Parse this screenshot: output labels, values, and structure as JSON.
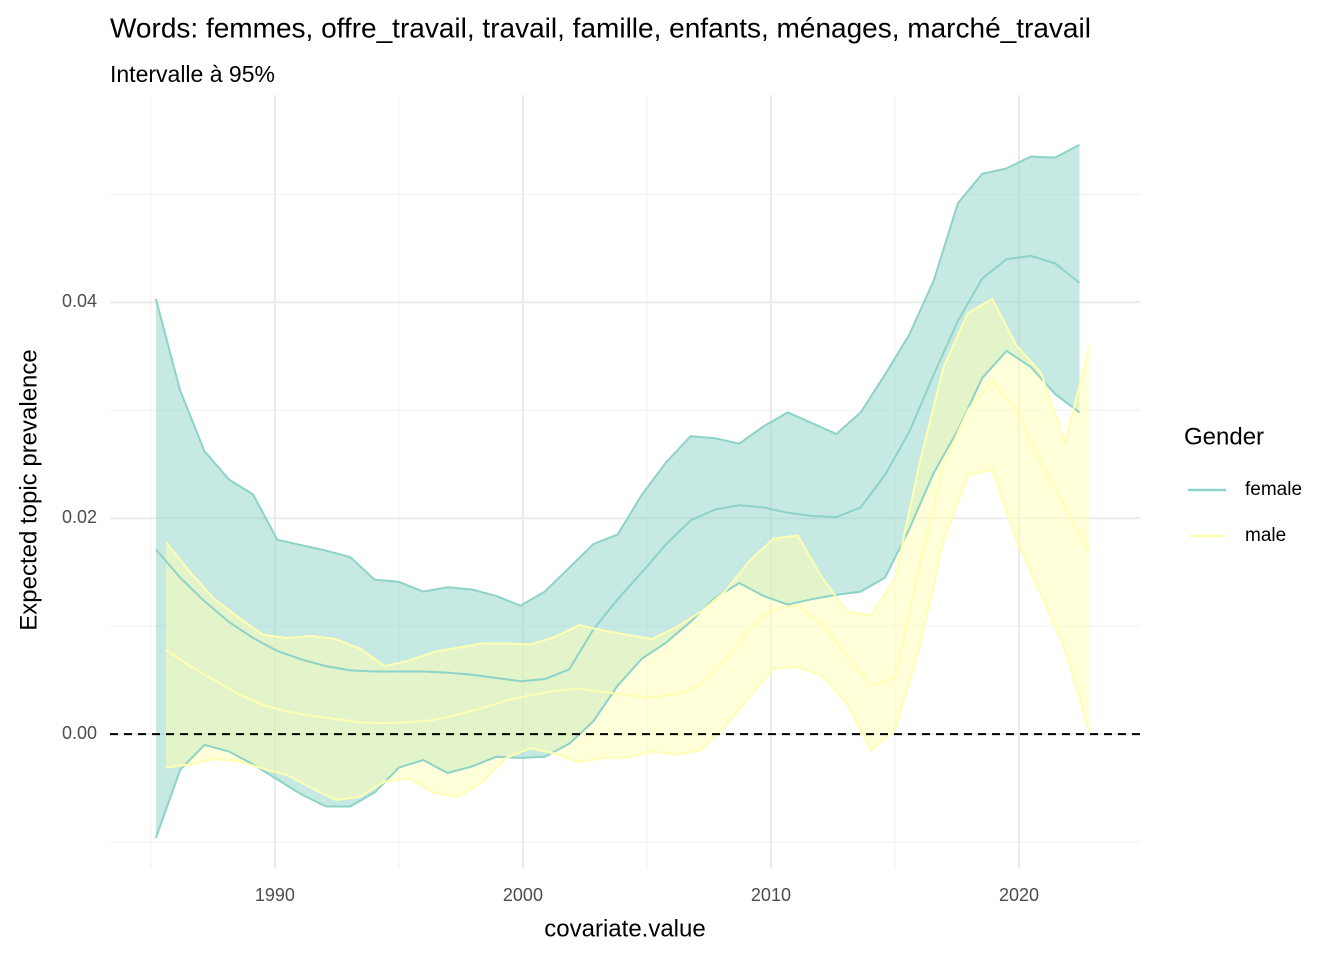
{
  "chart_data": {
    "type": "ribbon-line",
    "title": "Words: femmes, offre_travail, travail, famille, enfants, ménages, marché_travail",
    "subtitle": "Intervalle à 95%",
    "x_label": "covariate.value",
    "y_label": "Expected topic prevalence",
    "legend_title": "Gender",
    "legend_position": "right",
    "grid": true,
    "hline": 0,
    "xlim": [
      1983.35,
      2024.88
    ],
    "ylim": [
      -0.0124,
      0.0592
    ],
    "xticks": [
      1990,
      2000,
      2010,
      2020
    ],
    "yticks": [
      {
        "value": 0,
        "label": "0.00"
      },
      {
        "value": 0.02,
        "label": "0.02"
      },
      {
        "value": 0.04,
        "label": "0.04"
      }
    ],
    "series": [
      {
        "name": "female",
        "color": "#8dd3c7",
        "x": [
          1985.2,
          1986.18,
          1987.16,
          1988.14,
          1989.12,
          1990.1,
          1991.08,
          1992.06,
          1993.04,
          1994.02,
          1995.0,
          1995.98,
          1996.96,
          1997.94,
          1998.92,
          1999.9,
          2000.88,
          2001.86,
          2002.84,
          2003.82,
          2004.8,
          2005.78,
          2006.76,
          2007.74,
          2008.72,
          2009.7,
          2010.68,
          2011.66,
          2012.64,
          2013.62,
          2014.6,
          2015.58,
          2016.56,
          2017.54,
          2018.52,
          2019.5,
          2020.48,
          2021.46,
          2022.44
        ],
        "values": [
          0.0171,
          0.0145,
          0.0123,
          0.0104,
          0.0089,
          0.0077,
          0.0069,
          0.0063,
          0.0059,
          0.0058,
          0.0058,
          0.0058,
          0.0057,
          0.0055,
          0.0052,
          0.0049,
          0.0051,
          0.006,
          0.0097,
          0.0125,
          0.015,
          0.0176,
          0.0198,
          0.0208,
          0.0212,
          0.021,
          0.0205,
          0.0202,
          0.0201,
          0.021,
          0.024,
          0.028,
          0.0333,
          0.0383,
          0.0422,
          0.044,
          0.0443,
          0.0436,
          0.0418
        ],
        "upper": [
          0.0403,
          0.0318,
          0.0262,
          0.0236,
          0.0222,
          0.018,
          0.0175,
          0.017,
          0.0164,
          0.0143,
          0.0141,
          0.0132,
          0.0136,
          0.0134,
          0.0128,
          0.0119,
          0.0132,
          0.0154,
          0.0176,
          0.0185,
          0.0222,
          0.0252,
          0.0276,
          0.0274,
          0.0269,
          0.0285,
          0.0298,
          0.0288,
          0.0278,
          0.0298,
          0.0333,
          0.037,
          0.042,
          0.0492,
          0.0519,
          0.0524,
          0.0535,
          0.0534,
          0.0546
        ],
        "lower": [
          -0.0096,
          -0.0033,
          -0.001,
          -0.0016,
          -0.0028,
          -0.0042,
          -0.0056,
          -0.0067,
          -0.0067,
          -0.0054,
          -0.0031,
          -0.0024,
          -0.0036,
          -0.003,
          -0.0021,
          -0.0022,
          -0.0021,
          -0.0009,
          0.0012,
          0.0045,
          0.007,
          0.0085,
          0.0104,
          0.0126,
          0.014,
          0.0128,
          0.012,
          0.0125,
          0.0129,
          0.0132,
          0.0145,
          0.019,
          0.0242,
          0.0282,
          0.033,
          0.0355,
          0.034,
          0.0315,
          0.0298
        ]
      },
      {
        "name": "male",
        "color": "#ffffb3",
        "x": [
          1985.6,
          1986.58,
          1987.56,
          1988.54,
          1989.52,
          1990.5,
          1991.48,
          1992.46,
          1993.44,
          1994.42,
          1995.4,
          1996.38,
          1997.36,
          1998.34,
          1999.32,
          2000.3,
          2001.28,
          2002.26,
          2003.24,
          2004.22,
          2005.2,
          2006.18,
          2007.16,
          2008.14,
          2009.12,
          2010.1,
          2011.08,
          2012.06,
          2013.04,
          2014.02,
          2015.0,
          2015.98,
          2016.96,
          2017.94,
          2018.92,
          2019.9,
          2020.88,
          2021.86,
          2022.84
        ],
        "values": [
          0.0078,
          0.0063,
          0.005,
          0.0037,
          0.0027,
          0.0021,
          0.0017,
          0.0014,
          0.0011,
          0.001,
          0.0011,
          0.0013,
          0.0018,
          0.0024,
          0.0031,
          0.0036,
          0.004,
          0.0042,
          0.0039,
          0.0036,
          0.0034,
          0.0037,
          0.0046,
          0.0068,
          0.0097,
          0.0116,
          0.0119,
          0.0102,
          0.0073,
          0.0045,
          0.0052,
          0.0155,
          0.025,
          0.03,
          0.0327,
          0.03,
          0.0252,
          0.021,
          0.0169
        ],
        "upper": [
          0.0178,
          0.015,
          0.0125,
          0.0108,
          0.0092,
          0.0089,
          0.0091,
          0.0088,
          0.0079,
          0.0063,
          0.0068,
          0.0076,
          0.008,
          0.0084,
          0.0084,
          0.0083,
          0.009,
          0.0101,
          0.0096,
          0.0092,
          0.0088,
          0.0099,
          0.0113,
          0.0132,
          0.016,
          0.0181,
          0.0184,
          0.0145,
          0.0114,
          0.011,
          0.0144,
          0.025,
          0.034,
          0.039,
          0.0403,
          0.036,
          0.0335,
          0.027,
          0.036
        ],
        "lower": [
          -0.0031,
          -0.0028,
          -0.0023,
          -0.0025,
          -0.0032,
          -0.0038,
          -0.005,
          -0.0061,
          -0.0058,
          -0.0044,
          -0.0041,
          -0.0054,
          -0.0058,
          -0.0045,
          -0.0022,
          -0.0013,
          -0.0018,
          -0.0026,
          -0.0022,
          -0.0022,
          -0.0016,
          -0.0019,
          -0.0015,
          0.0007,
          0.0034,
          0.0061,
          0.0062,
          0.0054,
          0.0029,
          -0.0015,
          0.0004,
          0.008,
          0.018,
          0.024,
          0.0245,
          0.018,
          0.013,
          0.0078,
          0.0002
        ]
      }
    ]
  }
}
